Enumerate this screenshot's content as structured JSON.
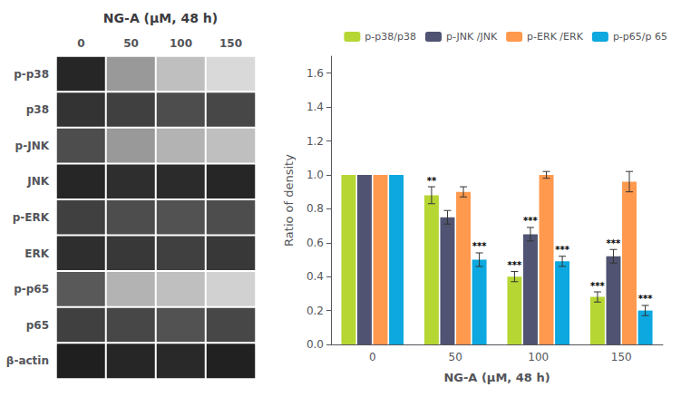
{
  "chart_data": [
    {
      "type": "heatmap",
      "title": "NG-A (μM, 48 h)",
      "categories": [
        "0",
        "50",
        "100",
        "150"
      ],
      "rows": [
        "p-p38",
        "p38",
        "p-JNK",
        "JNK",
        "p-ERK",
        "ERK",
        "p-p65",
        "p65",
        "β-actin"
      ],
      "cells": [
        [
          0.85,
          0.4,
          0.25,
          0.15
        ],
        [
          0.8,
          0.75,
          0.7,
          0.72
        ],
        [
          0.7,
          0.4,
          0.3,
          0.25
        ],
        [
          0.85,
          0.82,
          0.83,
          0.85
        ],
        [
          0.75,
          0.7,
          0.68,
          0.7
        ],
        [
          0.82,
          0.78,
          0.75,
          0.78
        ],
        [
          0.65,
          0.3,
          0.25,
          0.18
        ],
        [
          0.75,
          0.72,
          0.68,
          0.72
        ],
        [
          0.88,
          0.85,
          0.84,
          0.87
        ]
      ]
    },
    {
      "type": "bar",
      "categories": [
        "0",
        "50",
        "100",
        "150"
      ],
      "series": [
        {
          "name": "p-p38/p38",
          "values": [
            1.0,
            0.88,
            0.4,
            0.28
          ],
          "errors": [
            0.0,
            0.05,
            0.03,
            0.03
          ],
          "significance": [
            null,
            "**",
            "***",
            "***"
          ]
        },
        {
          "name": "p-JNK /JNK",
          "values": [
            1.0,
            0.75,
            0.65,
            0.52
          ],
          "errors": [
            0.0,
            0.04,
            0.04,
            0.04
          ],
          "significance": [
            null,
            null,
            "***",
            "***"
          ]
        },
        {
          "name": "p-ERK /ERK",
          "values": [
            1.0,
            0.9,
            1.0,
            0.96
          ],
          "errors": [
            0.0,
            0.03,
            0.02,
            0.06
          ],
          "significance": [
            null,
            null,
            null,
            null
          ]
        },
        {
          "name": "p-p65/p 65",
          "values": [
            1.0,
            0.5,
            0.49,
            0.2
          ],
          "errors": [
            0.0,
            0.04,
            0.03,
            0.03
          ],
          "significance": [
            null,
            "***",
            "***",
            "***"
          ]
        }
      ],
      "xlabel": "NG-A (μM, 48 h)",
      "ylabel": "Ratio of density",
      "ylim": [
        0,
        1.7
      ],
      "yticks": [
        {
          "value": 0,
          "label": "0.0"
        },
        0.2,
        0.4,
        0.6,
        0.8,
        {
          "value": 1.0,
          "label": "1.0"
        },
        1.2,
        1.4,
        1.6
      ],
      "grid": false,
      "legend": "upper right"
    }
  ]
}
